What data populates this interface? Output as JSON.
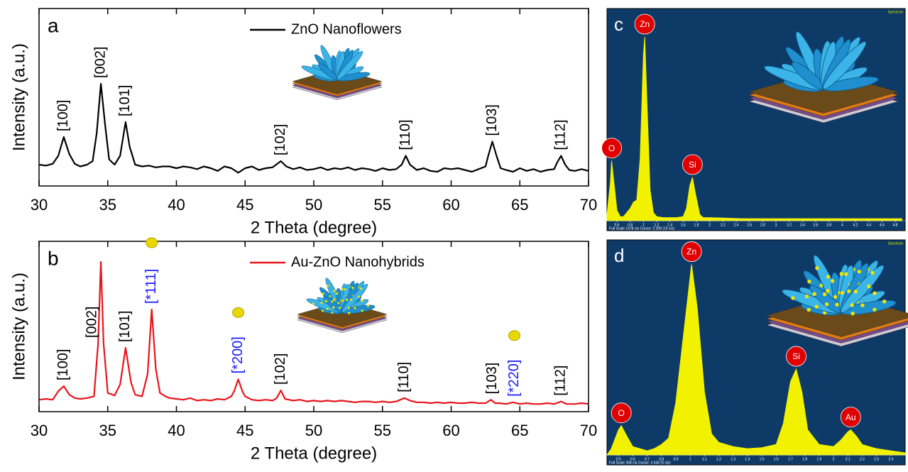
{
  "chart_data": [
    {
      "type": "line",
      "panel_label": "a",
      "x_label": "2 Theta (degree)",
      "y_label": "Intensity (a.u.)",
      "xlim": [
        30,
        70
      ],
      "xticks": [
        30,
        35,
        40,
        45,
        50,
        55,
        60,
        65,
        70
      ],
      "ylim": [
        0,
        100
      ],
      "legend": "top-center",
      "series": [
        {
          "name": "ZnO Nanoflowers",
          "color": "#000000",
          "x": [
            30,
            30.5,
            31,
            31.4,
            31.8,
            32.2,
            32.6,
            33,
            33.5,
            33.9,
            34.2,
            34.5,
            34.8,
            35.1,
            35.5,
            35.9,
            36.3,
            36.6,
            37,
            37.5,
            38,
            38.5,
            39,
            39.5,
            40,
            40.5,
            41,
            41.5,
            42,
            42.5,
            43,
            43.5,
            44,
            44.5,
            45,
            45.5,
            46,
            46.5,
            47,
            47.6,
            48,
            48.5,
            49,
            49.5,
            50,
            50.5,
            51,
            51.5,
            52,
            52.5,
            53,
            53.5,
            54,
            54.5,
            55,
            55.5,
            56,
            56.4,
            56.7,
            57,
            57.5,
            58,
            58.5,
            59,
            59.5,
            60,
            60.5,
            61,
            61.5,
            62,
            62.5,
            62.7,
            63,
            63.3,
            63.6,
            64,
            64.5,
            65,
            65.5,
            66,
            66.5,
            67,
            67.5,
            67.7,
            68,
            68.3,
            68.6,
            69,
            69.5,
            70
          ],
          "values": [
            12,
            11.5,
            12.5,
            17,
            27.6,
            18,
            12.5,
            11,
            12,
            14,
            30,
            57.6,
            35,
            15,
            12,
            17,
            36,
            22,
            12,
            11,
            11.5,
            10.5,
            11,
            11,
            10,
            11,
            10.5,
            9.5,
            11,
            10,
            8.5,
            11,
            10,
            7.5,
            10,
            11,
            9,
            10,
            10.5,
            14,
            11,
            9.5,
            10.5,
            9,
            9.5,
            10.5,
            9,
            10,
            9.5,
            10.5,
            9,
            10,
            9.5,
            8.5,
            10,
            9,
            9.5,
            12,
            17,
            12,
            9,
            10,
            8.5,
            8,
            10,
            9.5,
            10,
            9,
            8,
            9.5,
            11,
            17,
            25,
            17,
            10,
            9,
            8,
            10,
            8.5,
            9.5,
            8,
            9,
            9.5,
            13,
            17,
            12,
            9,
            8.5,
            9.5,
            8.5
          ]
        }
      ],
      "annotations": [
        {
          "text": "[100]",
          "x": 31.8,
          "color": "#000000"
        },
        {
          "text": "[002]",
          "x": 34.5,
          "color": "#000000"
        },
        {
          "text": "[101]",
          "x": 36.3,
          "color": "#000000"
        },
        {
          "text": "[102]",
          "x": 47.6,
          "color": "#000000"
        },
        {
          "text": "[110]",
          "x": 56.7,
          "color": "#000000"
        },
        {
          "text": "[103]",
          "x": 63,
          "color": "#000000"
        },
        {
          "text": "[112]",
          "x": 68,
          "color": "#000000"
        }
      ]
    },
    {
      "type": "line",
      "panel_label": "b",
      "x_label": "2 Theta (degree)",
      "y_label": "Intensity (a.u.)",
      "xlim": [
        30,
        70
      ],
      "xticks": [
        30,
        35,
        40,
        45,
        50,
        55,
        60,
        65,
        70
      ],
      "ylim": [
        0,
        100
      ],
      "legend": "top-center",
      "series": [
        {
          "name": "Au-ZnO Nanohybrids",
          "color": "#e8141c",
          "x": [
            30,
            30.5,
            31,
            31.4,
            31.8,
            32.2,
            32.6,
            33,
            33.5,
            34,
            34.3,
            34.5,
            34.7,
            35,
            35.5,
            35.9,
            36.3,
            36.7,
            37,
            37.5,
            37.9,
            38.2,
            38.5,
            38.8,
            39.2,
            39.5,
            40,
            40.5,
            41,
            41.5,
            42,
            42.5,
            43,
            43.5,
            44,
            44.2,
            44.5,
            44.8,
            45,
            45.5,
            46,
            46.5,
            47,
            47.3,
            47.6,
            47.9,
            48.5,
            49,
            49.5,
            50,
            50.5,
            51,
            51.5,
            52,
            52.5,
            53,
            53.5,
            54,
            54.5,
            55,
            55.5,
            56,
            56.6,
            57,
            57.5,
            58,
            58.5,
            59,
            59.5,
            60,
            60.5,
            61,
            61.5,
            62,
            62.5,
            62.9,
            63.2,
            63.5,
            64,
            64.5,
            65,
            65.5,
            66,
            66.5,
            67,
            67.5,
            68,
            68.4,
            69,
            69.5,
            70
          ],
          "values": [
            7,
            7.5,
            7,
            12,
            15,
            10,
            8,
            7.5,
            8,
            9,
            40,
            88,
            40,
            11,
            9.5,
            16,
            37.5,
            17,
            10,
            9,
            22,
            60,
            25,
            11,
            9,
            8,
            7.5,
            7,
            8,
            6.5,
            7,
            6.5,
            7.5,
            7,
            9,
            12,
            19,
            12,
            9,
            7,
            6.5,
            7,
            6.5,
            8,
            12.5,
            7.5,
            6.5,
            7,
            6,
            6.5,
            6,
            6.5,
            6,
            6.5,
            6,
            5.5,
            6,
            6,
            5.5,
            6,
            5.5,
            6,
            8,
            6.5,
            5.5,
            5.5,
            5,
            5.5,
            5,
            5.5,
            5,
            5,
            5.5,
            5,
            5,
            7,
            5,
            5,
            4.5,
            5.5,
            4.5,
            5,
            4.5,
            4.5,
            5,
            4.5,
            6,
            4.5,
            4.5,
            5,
            4.5
          ]
        }
      ],
      "annotations": [
        {
          "text": "[100]",
          "x": 31.8,
          "color": "#000000"
        },
        {
          "text": "[002]",
          "x": 33.9,
          "color": "#000000"
        },
        {
          "text": "[101]",
          "x": 36.3,
          "color": "#000000"
        },
        {
          "text": "[*111]",
          "x": 38.2,
          "color": "#1a1aff"
        },
        {
          "text": "[*200]",
          "x": 44.5,
          "color": "#1a1aff"
        },
        {
          "text": "[102]",
          "x": 47.6,
          "color": "#000000"
        },
        {
          "text": "[110]",
          "x": 56.6,
          "color": "#000000"
        },
        {
          "text": "[103]",
          "x": 63,
          "color": "#000000"
        },
        {
          "text": "[*220]",
          "x": 64.6,
          "color": "#1a1aff"
        },
        {
          "text": "[112]",
          "x": 68,
          "color": "#000000"
        }
      ]
    },
    {
      "type": "area",
      "panel_label": "c",
      "xlim": [
        0.45,
        4.95
      ],
      "xticks": [
        0.6,
        0.8,
        1,
        1.2,
        1.4,
        1.6,
        1.8,
        2,
        2.2,
        2.4,
        2.6,
        2.8,
        3,
        3.2,
        3.4,
        3.6,
        3.8,
        4,
        4.2,
        4.4,
        4.6,
        4.8
      ],
      "ylim": [
        0,
        100
      ],
      "series": [
        {
          "color": "#f2f200",
          "x": [
            0.45,
            0.5,
            0.52,
            0.55,
            0.6,
            0.65,
            0.7,
            0.75,
            0.8,
            0.85,
            0.9,
            0.95,
            1.0,
            1.02,
            1.05,
            1.1,
            1.15,
            1.2,
            1.3,
            1.4,
            1.5,
            1.6,
            1.65,
            1.7,
            1.74,
            1.78,
            1.85,
            1.9,
            2.0,
            2.5,
            3,
            3.5,
            4,
            4.5,
            4.9
          ],
          "values": [
            3,
            18,
            29,
            20,
            5,
            2,
            2,
            4,
            6,
            9,
            10,
            30,
            80,
            89,
            60,
            15,
            4,
            2,
            1.5,
            1.5,
            1.5,
            2,
            6,
            17,
            21,
            14,
            3,
            1.5,
            1.5,
            1,
            1,
            1,
            1,
            1,
            1
          ]
        }
      ],
      "annotations": [
        {
          "text": "O",
          "x": 0.52,
          "color": "#e00000"
        },
        {
          "text": "Zn",
          "x": 1.02,
          "color": "#e00000"
        },
        {
          "text": "Si",
          "x": 1.74,
          "color": "#e00000"
        }
      ],
      "footer": "Full Scale 1478 cts Cursor: 2.208 (15 cts)",
      "corner_text": "Spectrum"
    },
    {
      "type": "area",
      "panel_label": "d",
      "xlim": [
        0.42,
        2.5
      ],
      "xticks": [
        0.5,
        0.6,
        0.7,
        0.8,
        0.9,
        1,
        1.1,
        1.2,
        1.3,
        1.4,
        1.5,
        1.6,
        1.7,
        1.8,
        1.9,
        2,
        2.1,
        2.2,
        2.3,
        2.4
      ],
      "ylim": [
        0,
        100
      ],
      "series": [
        {
          "color": "#f2f200",
          "x": [
            0.42,
            0.45,
            0.5,
            0.52,
            0.55,
            0.6,
            0.65,
            0.7,
            0.75,
            0.8,
            0.85,
            0.9,
            0.95,
            1.0,
            1.01,
            1.05,
            1.1,
            1.15,
            1.2,
            1.3,
            1.4,
            1.5,
            1.6,
            1.65,
            1.7,
            1.74,
            1.78,
            1.82,
            1.9,
            2.0,
            2.05,
            2.1,
            2.12,
            2.16,
            2.2,
            2.3,
            2.4,
            2.5
          ],
          "values": [
            0,
            3,
            12,
            14,
            10,
            4,
            3,
            2,
            3,
            5,
            8,
            25,
            55,
            85,
            91,
            70,
            30,
            10,
            6,
            4,
            3,
            3.5,
            5,
            15,
            35,
            41,
            30,
            12,
            5,
            4,
            7,
            11,
            12,
            9,
            5,
            3,
            2,
            1
          ]
        }
      ],
      "annotations": [
        {
          "text": "O",
          "x": 0.52,
          "color": "#e00000"
        },
        {
          "text": "Zn",
          "x": 1.01,
          "color": "#e00000"
        },
        {
          "text": "Si",
          "x": 1.74,
          "color": "#e00000"
        },
        {
          "text": "Au",
          "x": 2.12,
          "color": "#e00000"
        }
      ],
      "footer": "Full Scale 268 cts Cursor: 2.536 (5 cts)",
      "corner_text": "Spectrum"
    }
  ]
}
